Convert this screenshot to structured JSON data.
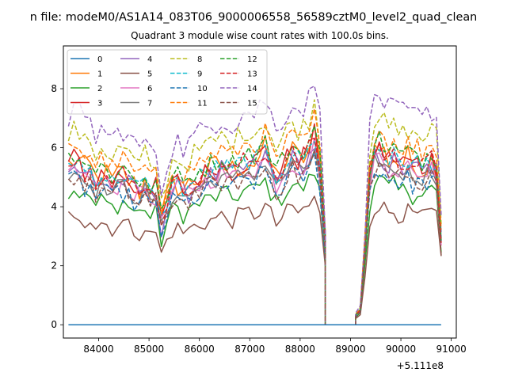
{
  "figure": {
    "suptitle": "n file: modeM0/AS1A14_083T06_9000006558_56589cztM0_level2_quad_clean",
    "offset_label": "+5.111e8"
  },
  "chart_data": {
    "type": "line",
    "title": "Quadrant 3 module wise count rates with 100.0s bins.",
    "xlabel": "",
    "ylabel": "",
    "x_offset": 511100000,
    "xlim": [
      83300,
      91100
    ],
    "ylim": [
      -0.45,
      9.45
    ],
    "xticks": [
      84000,
      85000,
      86000,
      87000,
      88000,
      89000,
      90000,
      91000
    ],
    "xtick_labels": [
      "84000",
      "85000",
      "86000",
      "87000",
      "88000",
      "89000",
      "90000",
      "91000"
    ],
    "yticks": [
      0,
      2,
      4,
      6,
      8
    ],
    "ytick_labels": [
      "0",
      "2",
      "4",
      "6",
      "8"
    ],
    "grid": false,
    "legend_position": "top-left",
    "legend_columns": 4,
    "segments": [
      {
        "x_start": 83400,
        "x_end": 88500,
        "profile": [
          5.4,
          5.6,
          5.5,
          5.2,
          5.3,
          4.9,
          5.1,
          5.0,
          4.8,
          5.0,
          5.1,
          4.9,
          4.7,
          4.6,
          4.9,
          4.4,
          4.6,
          3.5,
          4.2,
          4.7,
          4.8,
          4.6,
          4.7,
          4.9,
          5.0,
          5.1,
          5.2,
          5.3,
          5.4,
          5.3,
          5.2,
          5.4,
          5.5,
          5.6,
          5.5,
          5.7,
          5.9,
          5.5,
          5.0,
          5.3,
          5.6,
          5.8,
          5.6,
          5.7,
          5.9,
          6.4,
          5.4,
          2.7
        ]
      },
      {
        "x_start": 88500,
        "x_end": 89100,
        "profile": [
          0,
          0,
          0,
          0,
          0,
          0,
          0
        ]
      },
      {
        "x_start": 89100,
        "x_end": 90800,
        "profile": [
          0.3,
          0.5,
          2.6,
          5.1,
          5.9,
          6.0,
          5.8,
          5.6,
          5.7,
          5.5,
          5.5,
          5.6,
          5.4,
          5.5,
          5.3,
          5.5,
          5.6,
          5.4,
          3.0
        ]
      }
    ],
    "series": [
      {
        "name": "0",
        "color": "#1f77b4",
        "dash": "solid",
        "base": 0,
        "constant": true
      },
      {
        "name": "1",
        "color": "#ff7f0e",
        "dash": "solid",
        "base": 1.0,
        "noise": 0.18
      },
      {
        "name": "2",
        "color": "#2ca02c",
        "dash": "solid",
        "base": 0.82,
        "noise": 0.12
      },
      {
        "name": "3",
        "color": "#d62728",
        "dash": "solid",
        "base": 1.0,
        "noise": 0.14
      },
      {
        "name": "4",
        "color": "#9467bd",
        "dash": "solid",
        "base": 0.96,
        "noise": 0.14
      },
      {
        "name": "5",
        "color": "#8c564b",
        "dash": "solid",
        "base": 0.68,
        "noise": 0.1
      },
      {
        "name": "6",
        "color": "#e377c2",
        "dash": "solid",
        "base": 0.95,
        "noise": 0.12
      },
      {
        "name": "7",
        "color": "#7f7f7f",
        "dash": "solid",
        "base": 0.93,
        "noise": 0.1
      },
      {
        "name": "8",
        "color": "#bcbd22",
        "dash": "dashed",
        "base": 1.18,
        "noise": 0.12
      },
      {
        "name": "9",
        "color": "#17becf",
        "dash": "dashed",
        "base": 1.0,
        "noise": 0.12
      },
      {
        "name": "10",
        "color": "#1f77b4",
        "dash": "dashed",
        "base": 0.88,
        "noise": 0.12
      },
      {
        "name": "11",
        "color": "#ff7f0e",
        "dash": "dashed",
        "base": 1.1,
        "noise": 0.12
      },
      {
        "name": "12",
        "color": "#2ca02c",
        "dash": "dashed",
        "base": 1.05,
        "noise": 0.12
      },
      {
        "name": "13",
        "color": "#d62728",
        "dash": "dashed",
        "base": 1.0,
        "noise": 0.12
      },
      {
        "name": "14",
        "color": "#9467bd",
        "dash": "dashed",
        "base": 1.3,
        "noise": 0.14
      },
      {
        "name": "15",
        "color": "#8c564b",
        "dash": "dashed",
        "base": 0.9,
        "noise": 0.12
      }
    ]
  }
}
